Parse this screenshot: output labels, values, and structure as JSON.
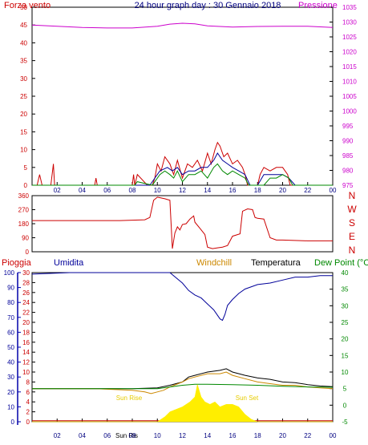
{
  "chart_data": [
    {
      "type": "line",
      "title": "24 hour graph day : 30 Gennaio 2018",
      "left_label": "Forza vento",
      "right_label": "Pressione",
      "x_ticks": [
        "02",
        "04",
        "06",
        "08",
        "10",
        "12",
        "14",
        "16",
        "18",
        "20",
        "22",
        "00"
      ],
      "left_ticks": [
        "0",
        "5",
        "10",
        "15",
        "20",
        "25",
        "30",
        "35",
        "40",
        "45",
        "50"
      ],
      "right_ticks": [
        "975",
        "980",
        "985",
        "990",
        "995",
        "1000",
        "1005",
        "1010",
        "1015",
        "1020",
        "1025",
        "1030",
        "1035"
      ],
      "ylim_left": [
        0,
        50
      ],
      "ylim_right": [
        975,
        1035
      ],
      "series": [
        {
          "color": "#cc00cc",
          "x": [
            0,
            2,
            4,
            6,
            8,
            10,
            11,
            12,
            13,
            14,
            16,
            18,
            20,
            22,
            24
          ],
          "values": [
            1029,
            1028.6,
            1028.2,
            1028,
            1028,
            1028.6,
            1029.3,
            1029.6,
            1029.4,
            1028.7,
            1028.3,
            1028.5,
            1028.6,
            1028.6,
            1028.2
          ]
        },
        {
          "color": "#cc0000",
          "x": [
            0,
            0.4,
            0.6,
            0.8,
            1.5,
            1.7,
            1.8,
            5,
            5.1,
            5.2,
            8,
            8.1,
            8.2,
            8.4,
            9.2,
            9.6,
            9.8,
            10,
            10.3,
            10.6,
            11,
            11.3,
            11.6,
            12,
            12.4,
            12.8,
            13.2,
            13.6,
            14,
            14.3,
            14.6,
            14.8,
            15,
            15.3,
            15.6,
            16,
            16.4,
            16.8,
            17,
            17.2,
            17.5,
            18,
            18.2,
            18.5,
            19,
            19.5,
            20,
            20.4,
            20.6,
            21,
            24
          ],
          "values": [
            0,
            0,
            3,
            0,
            0,
            6,
            0,
            0,
            2,
            0,
            0,
            3,
            0,
            3,
            0,
            0,
            2,
            6,
            4,
            8,
            6,
            3,
            7,
            2,
            6,
            5,
            7,
            4,
            9,
            6,
            10,
            12,
            11,
            8,
            9,
            6,
            7,
            5,
            3,
            0,
            0,
            0,
            3,
            5,
            4,
            5,
            5,
            3,
            0,
            0,
            0
          ]
        },
        {
          "color": "#000099",
          "x": [
            0,
            9.4,
            9.8,
            10.2,
            10.8,
            11.2,
            11.6,
            12,
            12.5,
            13,
            13.5,
            14,
            14.5,
            14.8,
            15.2,
            15.6,
            16,
            16.5,
            17,
            17.4,
            18,
            18.5,
            19,
            19.5,
            20,
            20.5,
            21,
            24
          ],
          "values": [
            0,
            0,
            2,
            4,
            5,
            4,
            5,
            3,
            4,
            4,
            5,
            5,
            7,
            9,
            7,
            6,
            5,
            4,
            3,
            0,
            0,
            3,
            3,
            3,
            3,
            2,
            0,
            0
          ]
        },
        {
          "color": "#008800",
          "x": [
            0,
            8.2,
            8.4,
            9.6,
            9.8,
            10.2,
            10.6,
            11,
            11.3,
            11.6,
            12,
            12.5,
            13,
            13.5,
            14,
            14.5,
            14.8,
            15.2,
            15.6,
            16,
            16.5,
            17,
            17.3,
            18.5,
            19,
            19.5,
            20,
            20.5,
            20.8,
            24
          ],
          "values": [
            0,
            0,
            1,
            0,
            1,
            3,
            4,
            3,
            2,
            4,
            1,
            3,
            3,
            4,
            2,
            5,
            6,
            4,
            3,
            4,
            3,
            2,
            0,
            0,
            2,
            2,
            3,
            2,
            0,
            0
          ]
        }
      ]
    },
    {
      "type": "line",
      "y_ticks": [
        "0",
        "90",
        "180",
        "270",
        "360"
      ],
      "right_labels": [
        "N",
        "W",
        "S",
        "E",
        "N"
      ],
      "ylim": [
        0,
        360
      ],
      "series": [
        {
          "color": "#cc0000",
          "x": [
            0,
            7,
            9,
            9.4,
            9.7,
            10,
            10.3,
            10.6,
            11,
            11.2,
            11.4,
            11.6,
            11.8,
            12,
            12.3,
            12.6,
            12.9,
            13,
            13.4,
            13.8,
            14,
            14.4,
            14.8,
            15.2,
            15.6,
            16,
            16.4,
            16.6,
            16.8,
            17.2,
            17.6,
            17.8,
            18,
            18.5,
            19,
            19.5,
            20,
            22,
            24
          ],
          "values": [
            200,
            200,
            205,
            220,
            330,
            350,
            345,
            340,
            330,
            20,
            120,
            160,
            140,
            175,
            180,
            210,
            230,
            190,
            150,
            110,
            30,
            20,
            25,
            30,
            40,
            100,
            110,
            115,
            260,
            275,
            270,
            220,
            215,
            210,
            90,
            75,
            75,
            70,
            70
          ]
        }
      ]
    },
    {
      "type": "line",
      "labels": {
        "rain": "Pioggia",
        "humidity": "Umidita",
        "windchill": "Windchill",
        "temperature": "Temperatura",
        "dewpoint": "Dew Point (°C"
      },
      "sun_labels": [
        "Sun Rise",
        "Sun Set",
        "Sun Ris"
      ],
      "hum_ticks": [
        "0",
        "10",
        "20",
        "30",
        "40",
        "50",
        "60",
        "70",
        "80",
        "90",
        "100"
      ],
      "rain_ticks": [
        "0",
        "2",
        "4",
        "6",
        "8",
        "10",
        "12",
        "14",
        "16",
        "18",
        "20",
        "22",
        "24",
        "26",
        "28",
        "30"
      ],
      "temp_ticks": [
        "-5",
        "0",
        "5",
        "10",
        "15",
        "20",
        "25",
        "30",
        "35",
        "40"
      ],
      "ylim_humidity": [
        0,
        100
      ],
      "ylim_temperature": [
        -5,
        40
      ],
      "series": [
        {
          "color": "#000099",
          "x": [
            0,
            3,
            10,
            11,
            12,
            12.5,
            13,
            13.5,
            14,
            14.5,
            15,
            15.2,
            15.4,
            15.6,
            16,
            16.5,
            17,
            18,
            19,
            20,
            21,
            22,
            23,
            24
          ],
          "values": [
            99,
            100,
            100,
            100,
            93,
            88,
            85,
            83,
            79,
            75,
            69,
            68,
            72,
            78,
            82,
            86,
            89,
            92,
            93,
            95,
            97,
            97,
            98,
            98
          ]
        },
        {
          "color": "#000000",
          "x": [
            0,
            5,
            8,
            10,
            11,
            12,
            12.5,
            13,
            14,
            15,
            15.5,
            16,
            17,
            18,
            19,
            20,
            21,
            22,
            23,
            24
          ],
          "values": [
            5,
            5,
            5,
            5.2,
            6,
            7,
            8.5,
            9,
            10,
            10.5,
            11,
            10,
            9,
            8.2,
            7.8,
            7,
            6.8,
            6.2,
            5.8,
            5.6
          ]
        },
        {
          "color": "#cc8800",
          "x": [
            0,
            5,
            8,
            9,
            9.5,
            10,
            10.5,
            11,
            12,
            12.5,
            13,
            14,
            15,
            15.5,
            16,
            17,
            18,
            19,
            20,
            21,
            22,
            23,
            24
          ],
          "values": [
            5,
            5,
            4.5,
            4,
            3.5,
            4,
            4.5,
            5.5,
            7,
            8,
            8.5,
            9.5,
            9.5,
            10,
            9,
            8,
            7,
            6.5,
            6,
            6,
            5.5,
            5.2,
            5
          ]
        },
        {
          "color": "#008800",
          "x": [
            0,
            10,
            12,
            13,
            14,
            16,
            18,
            20,
            22,
            24
          ],
          "values": [
            5,
            5,
            6,
            6.3,
            6.3,
            6.2,
            6,
            5.7,
            5.5,
            5.4
          ]
        },
        {
          "color": "#cc0000",
          "x": [
            0,
            24
          ],
          "values": [
            0.2,
            0.2
          ]
        },
        {
          "color": "#ffee00",
          "x": [
            0,
            0.1,
            10,
            10.6,
            11,
            11.5,
            12,
            12.3,
            12.6,
            13,
            13.2,
            13.5,
            13.8,
            14.2,
            14.6,
            15,
            15.5,
            16,
            16.5,
            17,
            17.5,
            18,
            24
          ],
          "values": [
            0,
            0,
            0,
            1,
            2,
            2.5,
            3,
            3.5,
            4,
            5,
            7.5,
            5,
            4,
            3.5,
            4,
            3,
            3.5,
            3.5,
            3,
            1.5,
            0.5,
            0,
            0
          ]
        }
      ]
    }
  ]
}
